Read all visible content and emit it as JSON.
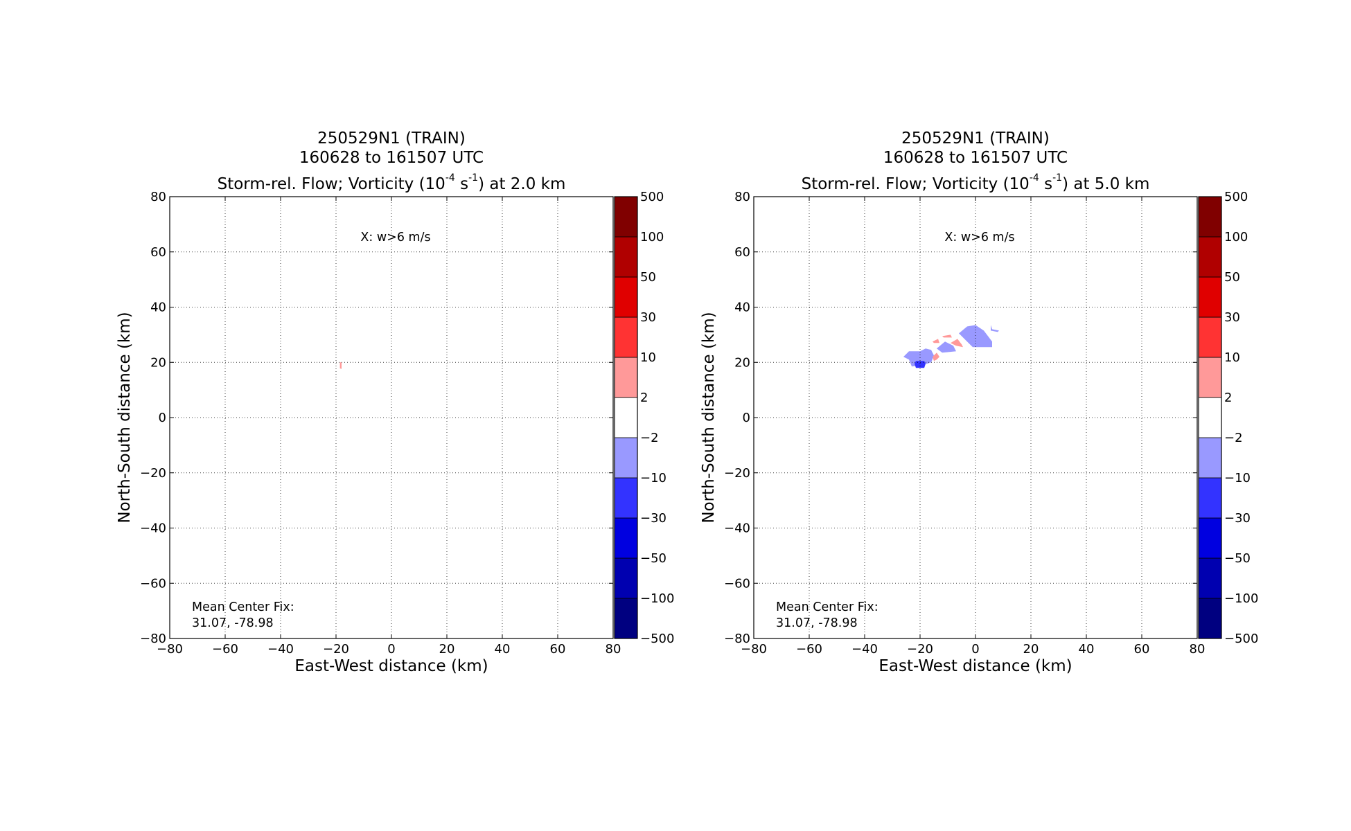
{
  "chart_data": [
    {
      "type": "heatmap",
      "title_line1": "250529N1 (TRAIN)",
      "title_line2": "160628 to 161507 UTC",
      "title_line3": {
        "prefix": "Storm-rel. Flow; Vorticity (10",
        "exp1": "-4",
        "mid": " s",
        "exp2": "-1",
        "suffix": ") at 2.0 km"
      },
      "xlabel": "East-West distance (km)",
      "ylabel": "North-South distance (km)",
      "xlim": [
        -80,
        80
      ],
      "ylim": [
        -80,
        80
      ],
      "xticks": [
        -80,
        -60,
        -40,
        -20,
        0,
        20,
        40,
        60,
        80
      ],
      "yticks": [
        -80,
        -60,
        -40,
        -20,
        0,
        20,
        40,
        60,
        80
      ],
      "grid": true,
      "annotation_top": "X: w>6 m/s",
      "annotation_bottom": [
        "Mean Center Fix:",
        "31.07, -78.98"
      ],
      "colorbar": {
        "levels": [
          -500,
          -100,
          -50,
          -30,
          -10,
          -2,
          2,
          10,
          30,
          50,
          100,
          500
        ],
        "colors": [
          "#000080",
          "#0000b0",
          "#0000e0",
          "#3333ff",
          "#9999ff",
          "#ffffff",
          "#ff9999",
          "#ff3333",
          "#e00000",
          "#b00000",
          "#800000"
        ]
      },
      "regions": [
        {
          "range": [
            2,
            10
          ],
          "polygon": [
            [
              -18.6,
              20
            ],
            [
              -18.0,
              20
            ],
            [
              -18.0,
              17.6
            ],
            [
              -18.6,
              17.8
            ]
          ]
        }
      ]
    },
    {
      "type": "heatmap",
      "title_line1": "250529N1 (TRAIN)",
      "title_line2": "160628 to 161507 UTC",
      "title_line3": {
        "prefix": "Storm-rel. Flow; Vorticity (10",
        "exp1": "-4",
        "mid": " s",
        "exp2": "-1",
        "suffix": ") at 5.0 km"
      },
      "xlabel": "East-West distance (km)",
      "ylabel": "North-South distance (km)",
      "xlim": [
        -80,
        80
      ],
      "ylim": [
        -80,
        80
      ],
      "xticks": [
        -80,
        -60,
        -40,
        -20,
        0,
        20,
        40,
        60,
        80
      ],
      "yticks": [
        -80,
        -60,
        -40,
        -20,
        0,
        20,
        40,
        60,
        80
      ],
      "grid": true,
      "annotation_top": "X: w>6 m/s",
      "annotation_bottom": [
        "Mean Center Fix:",
        "31.07, -78.98"
      ],
      "colorbar": {
        "levels": [
          -500,
          -100,
          -50,
          -30,
          -10,
          -2,
          2,
          10,
          30,
          50,
          100,
          500
        ],
        "colors": [
          "#000080",
          "#0000b0",
          "#0000e0",
          "#3333ff",
          "#9999ff",
          "#ffffff",
          "#ff9999",
          "#ff3333",
          "#e00000",
          "#b00000",
          "#800000"
        ]
      },
      "regions": [
        {
          "range": [
            -10,
            -2
          ],
          "polygon": [
            [
              -26,
              22
            ],
            [
              -24,
              24
            ],
            [
              -20,
              24
            ],
            [
              -18,
              25
            ],
            [
              -16,
              24.5
            ],
            [
              -15,
              22.5
            ],
            [
              -16,
              20
            ],
            [
              -19,
              19
            ],
            [
              -23,
              18.5
            ],
            [
              -24,
              21
            ]
          ]
        },
        {
          "range": [
            -30,
            -10
          ],
          "polygon": [
            [
              -21.5,
              20.5
            ],
            [
              -18.5,
              20.5
            ],
            [
              -18,
              19.5
            ],
            [
              -18.5,
              18
            ],
            [
              -21.5,
              18
            ],
            [
              -22,
              19.5
            ]
          ]
        },
        {
          "range": [
            -10,
            -2
          ],
          "polygon": [
            [
              -14,
              25
            ],
            [
              -11,
              27.5
            ],
            [
              -8,
              26
            ],
            [
              -7,
              24
            ],
            [
              -12,
              23.5
            ]
          ]
        },
        {
          "range": [
            -10,
            -2
          ],
          "polygon": [
            [
              -6,
              30.5
            ],
            [
              -3,
              33
            ],
            [
              0,
              33.5
            ],
            [
              3,
              31.5
            ],
            [
              6,
              27.5
            ],
            [
              6,
              25.5
            ],
            [
              -1,
              25.5
            ]
          ]
        },
        {
          "range": [
            -10,
            -2
          ],
          "polygon": [
            [
              5.5,
              33.5
            ],
            [
              6,
              32
            ],
            [
              8.5,
              31.5
            ],
            [
              8,
              31
            ],
            [
              5.5,
              31.5
            ]
          ]
        },
        {
          "range": [
            2,
            10
          ],
          "polygon": [
            [
              -15.5,
              22
            ],
            [
              -14,
              23.5
            ],
            [
              -13,
              22
            ],
            [
              -14,
              21
            ],
            [
              -15,
              20.5
            ]
          ]
        },
        {
          "range": [
            2,
            10
          ],
          "polygon": [
            [
              -12,
              29.5
            ],
            [
              -9,
              30
            ],
            [
              -8.5,
              29
            ],
            [
              -11.5,
              29
            ]
          ]
        },
        {
          "range": [
            2,
            10
          ],
          "polygon": [
            [
              -15.5,
              27.5
            ],
            [
              -13.5,
              28.5
            ],
            [
              -13,
              27
            ],
            [
              -15,
              27
            ]
          ]
        },
        {
          "range": [
            2,
            10
          ],
          "polygon": [
            [
              -9,
              27
            ],
            [
              -6.5,
              28.5
            ],
            [
              -5,
              26.5
            ],
            [
              -4.5,
              25.5
            ],
            [
              -7,
              26
            ]
          ]
        }
      ]
    }
  ]
}
